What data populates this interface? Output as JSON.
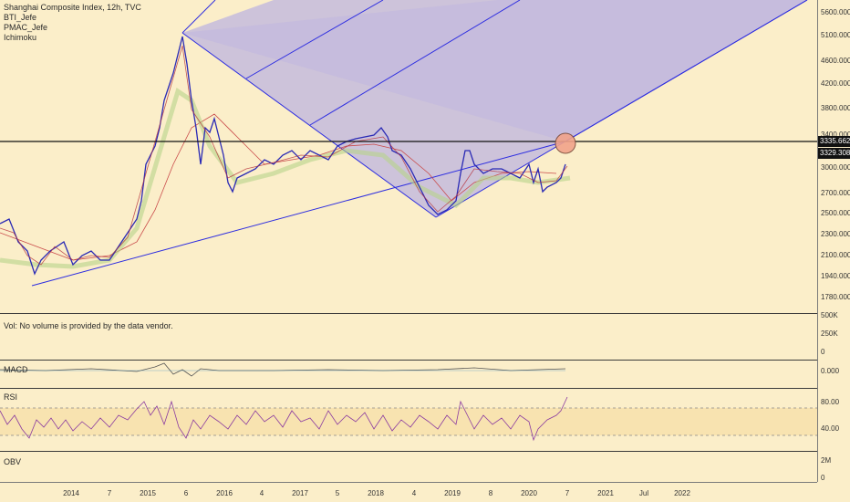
{
  "legend": {
    "title": "Shanghai Composite Index, 12h, TVC",
    "indicators": [
      "BTI_Jefe",
      "PMAC_Jefe",
      "Ichimoku"
    ]
  },
  "price_axis": [
    "5600.000",
    "5100.000",
    "4600.000",
    "4200.000",
    "3800.000",
    "3400.000",
    "3000.000",
    "2700.000",
    "2500.000",
    "2300.000",
    "2100.000",
    "1940.000",
    "1780.000"
  ],
  "price_tags": {
    "upper": "3335.662",
    "lower": "3329.308"
  },
  "volume_pane": {
    "label": "Vol: No volume is provided by the data vendor.",
    "ticks": [
      "500K",
      "250K",
      "0"
    ]
  },
  "macd_pane": {
    "label": "MACD",
    "ticks": [
      "0.000"
    ]
  },
  "rsi_pane": {
    "label": "RSI",
    "ticks": [
      "80.00",
      "40.00"
    ]
  },
  "obv_pane": {
    "label": "OBV",
    "ticks": [
      "2M",
      "0"
    ]
  },
  "time_axis": [
    "2014",
    "7",
    "2015",
    "6",
    "2016",
    "4",
    "2017",
    "5",
    "2018",
    "4",
    "2019",
    "8",
    "2020",
    "7",
    "2021",
    "Jul",
    "2022"
  ],
  "colors": {
    "background": "#fbeec9",
    "pitchfork": "#2d2de0",
    "pitchfork_fill": "#c7bedb",
    "candle_up": "#2a2ab5",
    "candle_down": "#b5303a",
    "rsi": "#8a3aa0",
    "marker": "#f2a38a"
  }
}
